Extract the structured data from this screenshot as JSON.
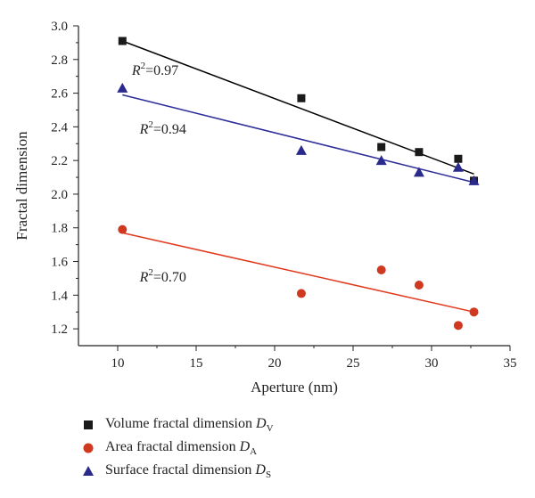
{
  "chart_data": {
    "type": "scatter",
    "xlabel": "Aperture (nm)",
    "ylabel": "Fractal dimension",
    "xlim": [
      7.5,
      35
    ],
    "ylim": [
      1.1,
      3.0
    ],
    "x_ticks": [
      "10",
      "15",
      "20",
      "25",
      "30",
      "35"
    ],
    "y_ticks": [
      "1.2",
      "1.4",
      "1.6",
      "1.8",
      "2.0",
      "2.2",
      "2.4",
      "2.6",
      "2.8",
      "3.0"
    ],
    "series": [
      {
        "name": "Volume fractal dimension D_V",
        "label_text": "Volume fractal dimension ",
        "label_symbol": "D",
        "label_sub": "V",
        "marker": "square",
        "color": "#1a1a1a",
        "line_color": "#000000",
        "x": [
          10.3,
          21.7,
          26.8,
          29.2,
          31.7,
          32.7
        ],
        "y": [
          2.91,
          2.57,
          2.28,
          2.25,
          2.21,
          2.08
        ],
        "fit": {
          "x": [
            10.3,
            32.7
          ],
          "y": [
            2.91,
            2.12
          ]
        },
        "r2": "0.97"
      },
      {
        "name": "Area fractal dimension D_A",
        "label_text": "Area fractal dimension ",
        "label_symbol": "D",
        "label_sub": "A",
        "marker": "circle",
        "color": "#d0391f",
        "line_color": "#e03a1e",
        "x": [
          10.3,
          21.7,
          26.8,
          29.2,
          31.7,
          32.7
        ],
        "y": [
          1.79,
          1.41,
          1.55,
          1.46,
          1.22,
          1.3
        ],
        "fit": {
          "x": [
            10.3,
            32.7
          ],
          "y": [
            1.77,
            1.3
          ]
        },
        "r2": "0.70"
      },
      {
        "name": "Surface fractal dimension D_S",
        "label_text": "Surface fractal dimension ",
        "label_symbol": "D",
        "label_sub": "S",
        "marker": "triangle",
        "color": "#2a2a8c",
        "line_color": "#2b2b9a",
        "x": [
          10.3,
          21.7,
          26.8,
          29.2,
          31.7,
          32.7
        ],
        "y": [
          2.63,
          2.26,
          2.2,
          2.13,
          2.16,
          2.08
        ],
        "fit": {
          "x": [
            10.3,
            32.7
          ],
          "y": [
            2.59,
            2.07
          ]
        },
        "r2": "0.94"
      }
    ],
    "annotations": [
      {
        "prefix": "R",
        "sup": "2",
        "text": "=0.97",
        "x": 10.9,
        "y": 2.71
      },
      {
        "prefix": "R",
        "sup": "2",
        "text": "=0.94",
        "x": 11.4,
        "y": 2.36
      },
      {
        "prefix": "R",
        "sup": "2",
        "text": "=0.70",
        "x": 11.4,
        "y": 1.48
      }
    ],
    "legend_position": "bottom",
    "grid": false
  }
}
